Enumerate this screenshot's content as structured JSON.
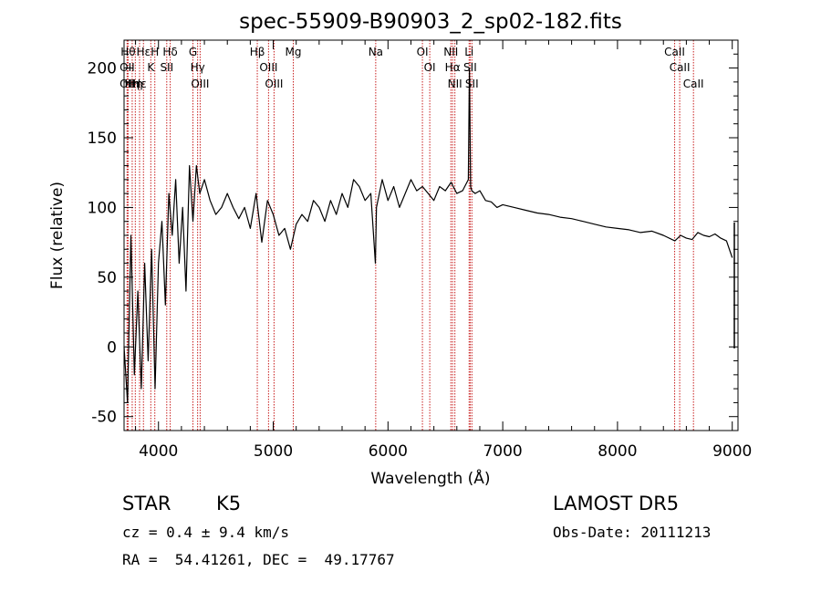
{
  "chart_data": {
    "type": "line",
    "title": "spec-55909-B90903_2_sp02-182.fits",
    "xlabel": "Wavelength (Å)",
    "ylabel": "Flux (relative)",
    "xlim": [
      3700,
      9050
    ],
    "ylim": [
      -60,
      220
    ],
    "xticks": [
      4000,
      5000,
      6000,
      7000,
      8000,
      9000
    ],
    "yticks": [
      -50,
      0,
      50,
      100,
      150,
      200
    ],
    "line_color": "#000000",
    "marker_color": "#c81e1e",
    "spectrum": {
      "x": [
        3700,
        3730,
        3760,
        3790,
        3820,
        3850,
        3880,
        3910,
        3940,
        3970,
        4000,
        4030,
        4060,
        4090,
        4120,
        4150,
        4180,
        4210,
        4240,
        4270,
        4300,
        4330,
        4360,
        4400,
        4450,
        4500,
        4550,
        4600,
        4650,
        4700,
        4750,
        4800,
        4850,
        4900,
        4950,
        5000,
        5050,
        5100,
        5150,
        5200,
        5250,
        5300,
        5350,
        5400,
        5450,
        5500,
        5550,
        5600,
        5650,
        5700,
        5750,
        5800,
        5850,
        5890,
        5900,
        5950,
        6000,
        6050,
        6100,
        6150,
        6200,
        6250,
        6300,
        6350,
        6400,
        6450,
        6500,
        6550,
        6600,
        6650,
        6700,
        6710,
        6720,
        6730,
        6760,
        6800,
        6850,
        6900,
        6950,
        7000,
        7100,
        7200,
        7300,
        7400,
        7500,
        7600,
        7700,
        7800,
        7900,
        8000,
        8100,
        8200,
        8300,
        8400,
        8500,
        8550,
        8600,
        8650,
        8700,
        8750,
        8800,
        8850,
        8900,
        8950,
        9000
      ],
      "y": [
        0,
        -40,
        80,
        -20,
        40,
        -30,
        60,
        -10,
        70,
        -30,
        60,
        90,
        30,
        110,
        80,
        120,
        60,
        100,
        40,
        130,
        90,
        130,
        110,
        120,
        105,
        95,
        100,
        110,
        100,
        92,
        100,
        85,
        110,
        75,
        105,
        95,
        80,
        85,
        70,
        88,
        95,
        90,
        105,
        100,
        90,
        105,
        95,
        110,
        100,
        120,
        115,
        105,
        110,
        60,
        100,
        120,
        105,
        115,
        100,
        110,
        120,
        112,
        115,
        110,
        105,
        115,
        112,
        118,
        110,
        112,
        120,
        200,
        115,
        112,
        110,
        112,
        105,
        104,
        100,
        102,
        100,
        98,
        96,
        95,
        93,
        92,
        90,
        88,
        86,
        85,
        84,
        82,
        83,
        80,
        76,
        80,
        78,
        77,
        82,
        80,
        79,
        81,
        78,
        76,
        64
      ]
    },
    "line_markers": [
      {
        "wavelength": 3735,
        "label": "Hθ"
      },
      {
        "wavelength": 3727,
        "label": "OII"
      },
      {
        "wavelength": 3727,
        "label": "OII"
      },
      {
        "wavelength": 3771,
        "label": "Hη"
      },
      {
        "wavelength": 3798,
        "label": "Hη"
      },
      {
        "wavelength": 3835,
        "label": "Hε"
      },
      {
        "wavelength": 3869,
        "label": "Hε"
      },
      {
        "wavelength": 3933,
        "label": "K"
      },
      {
        "wavelength": 3968,
        "label": "H"
      },
      {
        "wavelength": 4072,
        "label": "SII"
      },
      {
        "wavelength": 4102,
        "label": "Hδ"
      },
      {
        "wavelength": 4300,
        "label": "G"
      },
      {
        "wavelength": 4341,
        "label": "Hγ"
      },
      {
        "wavelength": 4363,
        "label": "OIII"
      },
      {
        "wavelength": 4861,
        "label": "Hβ"
      },
      {
        "wavelength": 4959,
        "label": "OIII"
      },
      {
        "wavelength": 5007,
        "label": "OIII"
      },
      {
        "wavelength": 5175,
        "label": "Mg"
      },
      {
        "wavelength": 5893,
        "label": "Na"
      },
      {
        "wavelength": 6300,
        "label": "OI"
      },
      {
        "wavelength": 6364,
        "label": "OI"
      },
      {
        "wavelength": 6548,
        "label": "NII"
      },
      {
        "wavelength": 6563,
        "label": "Hα"
      },
      {
        "wavelength": 6583,
        "label": "NII"
      },
      {
        "wavelength": 6707,
        "label": "Li"
      },
      {
        "wavelength": 6716,
        "label": "SII"
      },
      {
        "wavelength": 6731,
        "label": "SII"
      },
      {
        "wavelength": 8498,
        "label": "CaII"
      },
      {
        "wavelength": 8542,
        "label": "CaII"
      },
      {
        "wavelength": 8662,
        "label": "CaII"
      }
    ]
  },
  "info": {
    "class": "STAR",
    "subclass": "K5",
    "survey": "LAMOST DR5",
    "redshift": "cz = 0.4 ± 9.4 km/s",
    "obs_date": "Obs-Date: 20111213",
    "coords": "RA =  54.41261, DEC =  49.17767"
  }
}
